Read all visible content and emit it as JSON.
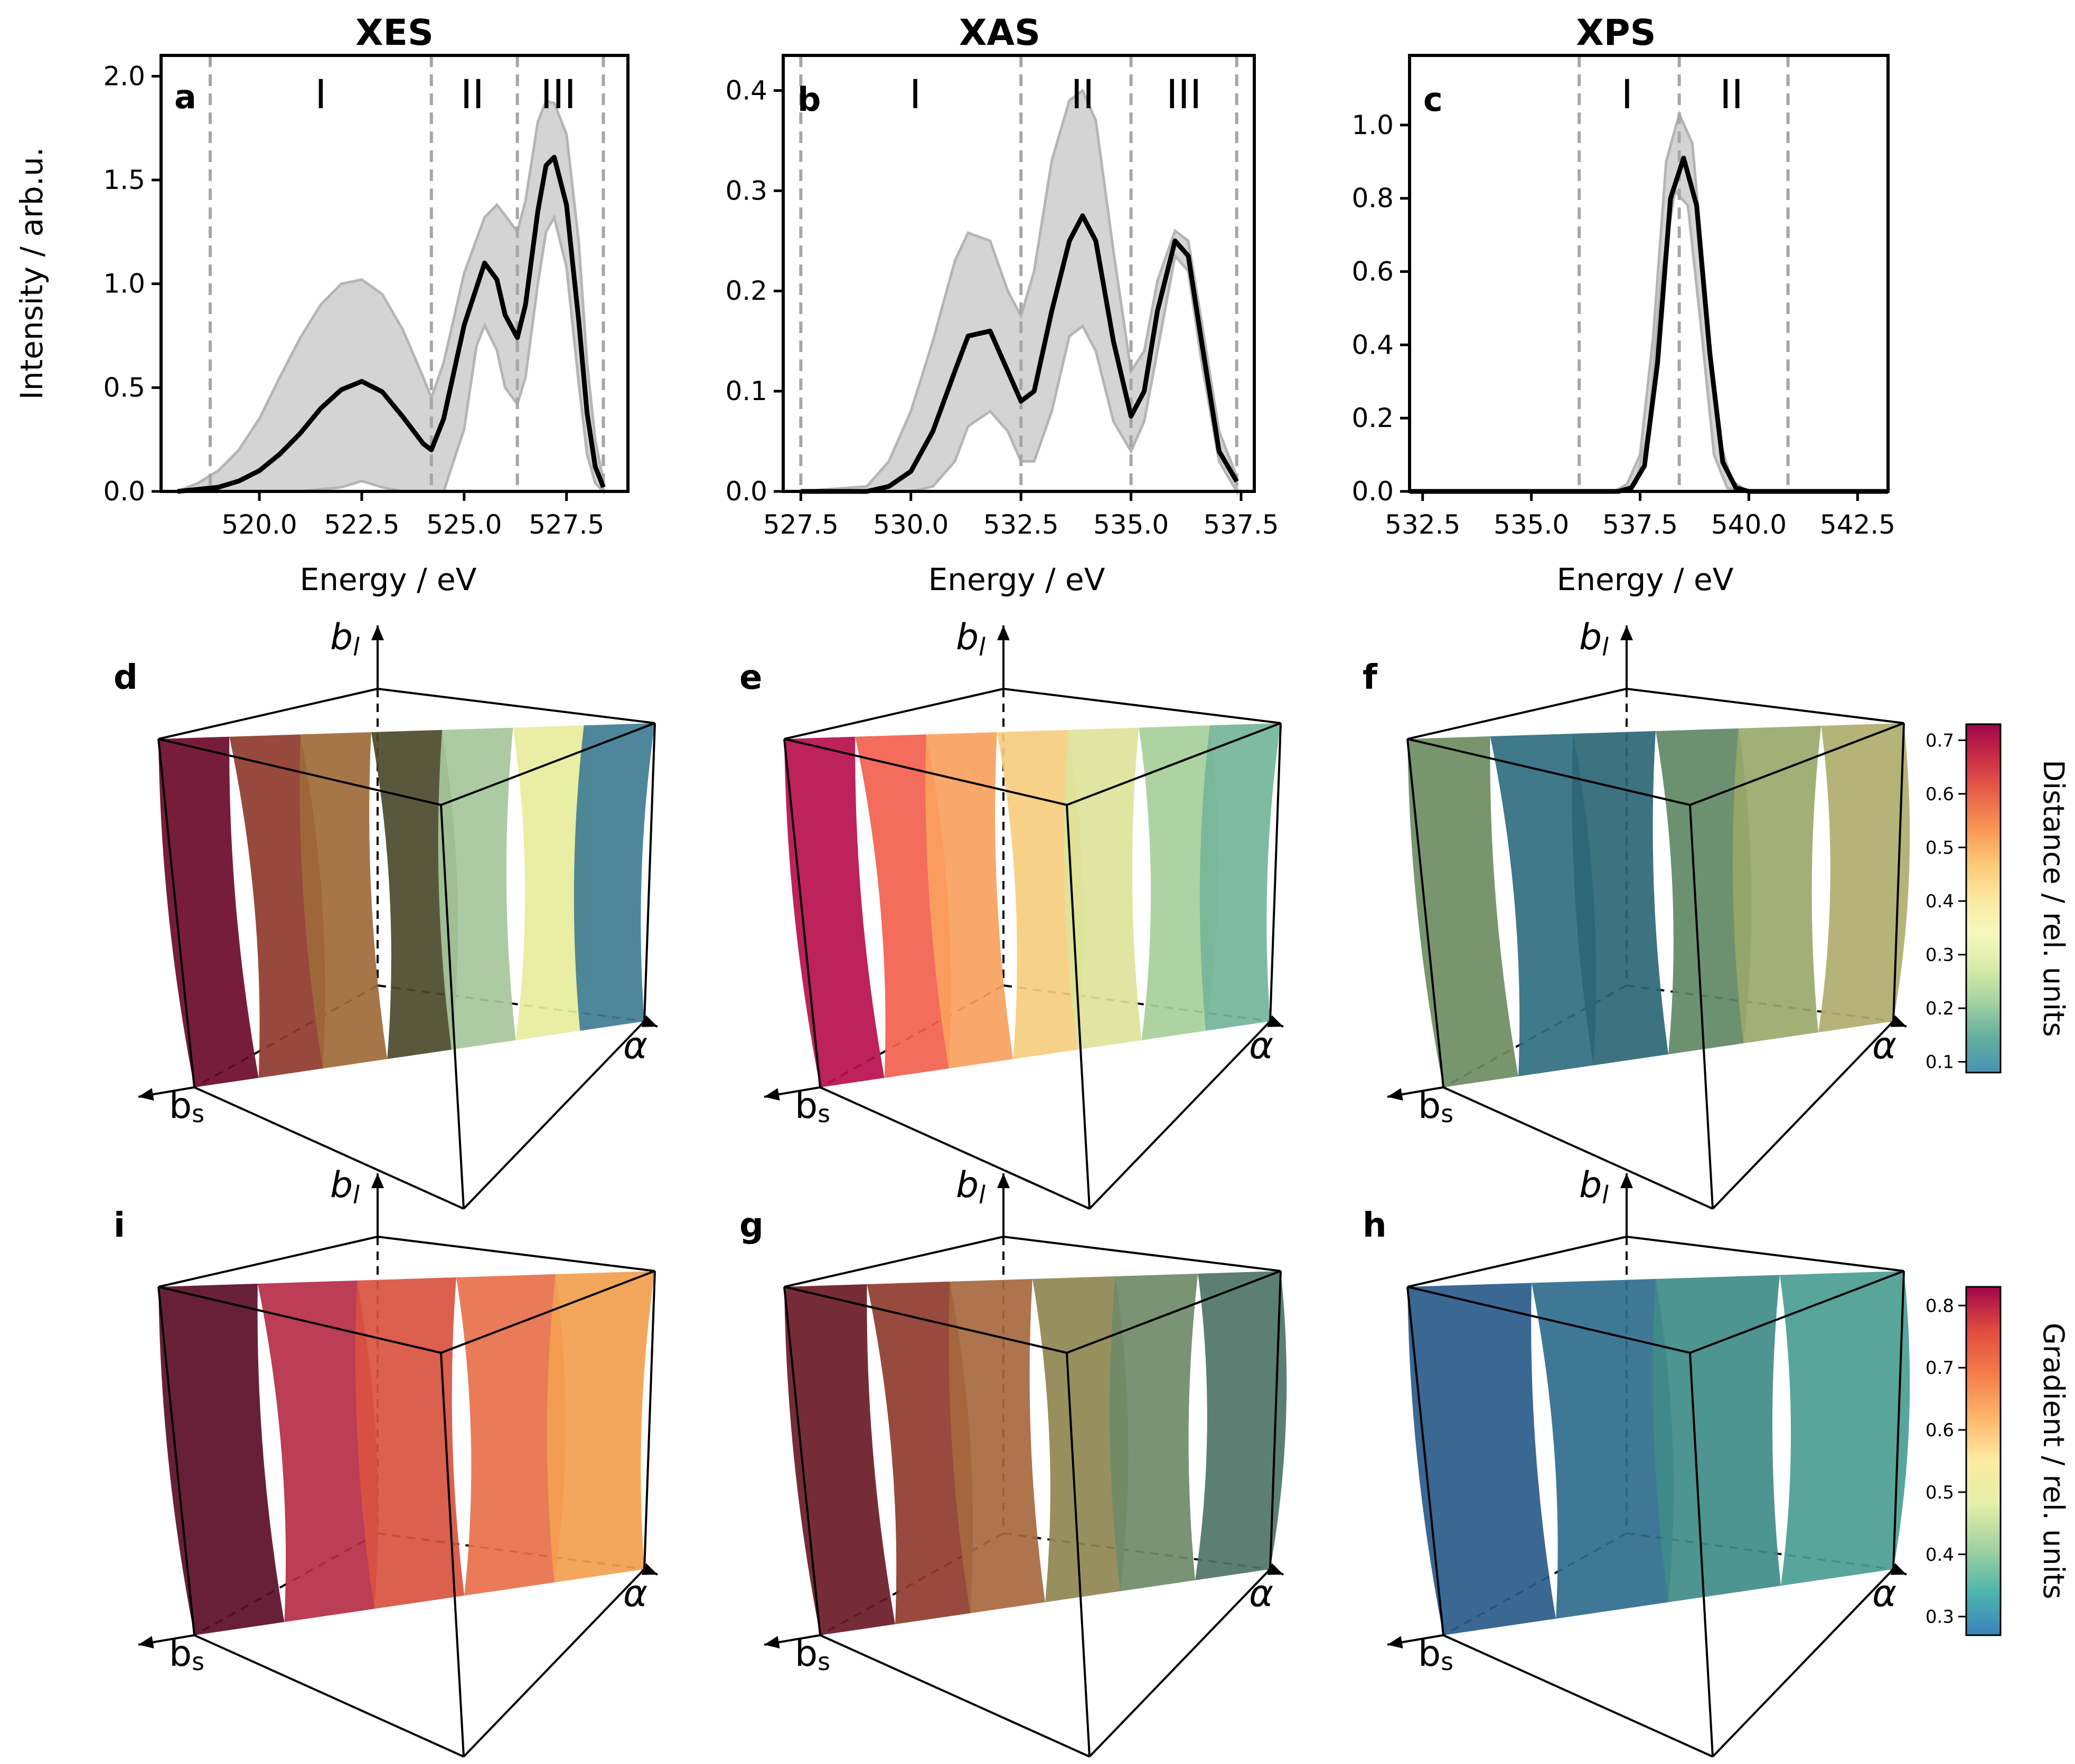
{
  "colors": {
    "line": "#000000",
    "band": "#d4d4d4",
    "band_edge": "#b5b5b5",
    "divider": "#a6a6a6"
  },
  "chart_data": [
    {
      "id": "a",
      "type": "line",
      "title": "XES",
      "panel_label": "a",
      "xlabel": "Energy / eV",
      "ylabel": "Intensity / arb.u.",
      "xlim": [
        517.6,
        529.0
      ],
      "ylim": [
        0.0,
        2.1
      ],
      "xticks": [
        520.0,
        522.5,
        525.0,
        527.5
      ],
      "xtick_labels": [
        "520.0",
        "522.5",
        "525.0",
        "527.5"
      ],
      "yticks": [
        0.0,
        0.5,
        1.0,
        1.5,
        2.0
      ],
      "ytick_labels": [
        "0.0",
        "0.5",
        "1.0",
        "1.5",
        "2.0"
      ],
      "region_boundaries": [
        518.8,
        524.2,
        526.3,
        528.4
      ],
      "regions": [
        {
          "label": "I",
          "x": 521.5
        },
        {
          "label": "II",
          "x": 525.2
        },
        {
          "label": "III",
          "x": 527.3
        }
      ],
      "series": [
        {
          "name": "mean",
          "x": [
            518.0,
            518.5,
            519.0,
            519.5,
            520.0,
            520.5,
            521.0,
            521.5,
            522.0,
            522.5,
            523.0,
            523.5,
            524.0,
            524.2,
            524.5,
            525.0,
            525.5,
            525.8,
            526.0,
            526.3,
            526.5,
            526.8,
            527.0,
            527.2,
            527.5,
            527.8,
            528.0,
            528.2,
            528.4
          ],
          "y": [
            0.0,
            0.01,
            0.02,
            0.05,
            0.1,
            0.18,
            0.28,
            0.4,
            0.49,
            0.53,
            0.48,
            0.36,
            0.23,
            0.2,
            0.35,
            0.8,
            1.1,
            1.02,
            0.85,
            0.74,
            0.9,
            1.35,
            1.57,
            1.61,
            1.38,
            0.82,
            0.38,
            0.12,
            0.02
          ]
        },
        {
          "name": "upper",
          "x": [
            518.0,
            518.5,
            519.0,
            519.5,
            520.0,
            520.5,
            521.0,
            521.5,
            522.0,
            522.5,
            523.0,
            523.5,
            524.0,
            524.2,
            524.5,
            525.0,
            525.5,
            525.8,
            526.0,
            526.3,
            526.5,
            526.8,
            527.0,
            527.2,
            527.5,
            527.8,
            528.0,
            528.2,
            528.4
          ],
          "y": [
            0.0,
            0.04,
            0.1,
            0.2,
            0.35,
            0.55,
            0.74,
            0.9,
            1.0,
            1.02,
            0.95,
            0.78,
            0.55,
            0.45,
            0.62,
            1.05,
            1.32,
            1.38,
            1.33,
            1.25,
            1.4,
            1.78,
            1.88,
            1.87,
            1.72,
            1.2,
            0.62,
            0.25,
            0.05
          ]
        },
        {
          "name": "lower",
          "x": [
            518.0,
            521.0,
            522.0,
            522.5,
            523.0,
            523.5,
            524.0,
            524.5,
            525.0,
            525.3,
            525.5,
            525.8,
            526.0,
            526.3,
            526.5,
            526.8,
            527.0,
            527.2,
            527.5,
            527.8,
            528.0,
            528.2,
            528.4
          ],
          "y": [
            0.0,
            0.0,
            0.02,
            0.05,
            0.02,
            0.0,
            0.0,
            0.0,
            0.3,
            0.7,
            0.8,
            0.68,
            0.5,
            0.42,
            0.55,
            1.0,
            1.25,
            1.32,
            1.08,
            0.52,
            0.18,
            0.04,
            0.0
          ]
        }
      ]
    },
    {
      "id": "b",
      "type": "line",
      "title": "XAS",
      "panel_label": "b",
      "xlabel": "Energy / eV",
      "ylabel": "",
      "xlim": [
        527.1,
        537.8
      ],
      "ylim": [
        0.0,
        0.435
      ],
      "xticks": [
        527.5,
        530.0,
        532.5,
        535.0,
        537.5
      ],
      "xtick_labels": [
        "527.5",
        "530.0",
        "532.5",
        "535.0",
        "537.5"
      ],
      "yticks": [
        0.0,
        0.1,
        0.2,
        0.3,
        0.4
      ],
      "ytick_labels": [
        "0.0",
        "0.1",
        "0.2",
        "0.3",
        "0.4"
      ],
      "region_boundaries": [
        527.5,
        532.5,
        535.0,
        537.4
      ],
      "regions": [
        {
          "label": "I",
          "x": 530.1
        },
        {
          "label": "II",
          "x": 533.9
        },
        {
          "label": "III",
          "x": 536.2
        }
      ],
      "series": [
        {
          "name": "mean",
          "x": [
            527.5,
            529.0,
            529.5,
            530.0,
            530.5,
            531.0,
            531.3,
            531.8,
            532.2,
            532.5,
            532.8,
            533.2,
            533.6,
            533.9,
            534.2,
            534.6,
            535.0,
            535.3,
            535.6,
            536.0,
            536.3,
            536.6,
            537.0,
            537.4
          ],
          "y": [
            0.0,
            0.0,
            0.005,
            0.02,
            0.06,
            0.12,
            0.155,
            0.16,
            0.12,
            0.09,
            0.1,
            0.18,
            0.25,
            0.275,
            0.25,
            0.15,
            0.075,
            0.1,
            0.18,
            0.25,
            0.235,
            0.15,
            0.04,
            0.01
          ]
        },
        {
          "name": "upper",
          "x": [
            527.5,
            529.0,
            529.5,
            530.0,
            530.5,
            531.0,
            531.3,
            531.8,
            532.2,
            532.5,
            532.8,
            533.2,
            533.6,
            533.9,
            534.2,
            534.6,
            535.0,
            535.3,
            535.6,
            536.0,
            536.3,
            536.6,
            537.0,
            537.4
          ],
          "y": [
            0.0,
            0.005,
            0.03,
            0.08,
            0.15,
            0.23,
            0.258,
            0.25,
            0.2,
            0.175,
            0.22,
            0.33,
            0.39,
            0.4,
            0.37,
            0.24,
            0.12,
            0.14,
            0.21,
            0.26,
            0.25,
            0.17,
            0.06,
            0.015
          ]
        },
        {
          "name": "lower",
          "x": [
            527.5,
            530.0,
            530.5,
            531.0,
            531.3,
            531.8,
            532.2,
            532.5,
            532.8,
            533.2,
            533.6,
            533.9,
            534.2,
            534.6,
            535.0,
            535.3,
            535.6,
            536.0,
            536.3,
            536.6,
            537.0,
            537.4
          ],
          "y": [
            0.0,
            0.0,
            0.005,
            0.03,
            0.065,
            0.08,
            0.06,
            0.03,
            0.03,
            0.08,
            0.155,
            0.165,
            0.14,
            0.07,
            0.04,
            0.07,
            0.14,
            0.235,
            0.22,
            0.13,
            0.03,
            0.0
          ]
        }
      ]
    },
    {
      "id": "c",
      "type": "line",
      "title": "XPS",
      "panel_label": "c",
      "xlabel": "Energy / eV",
      "ylabel": "",
      "xlim": [
        532.2,
        543.2
      ],
      "ylim": [
        0.0,
        1.19
      ],
      "xticks": [
        532.5,
        535.0,
        537.5,
        540.0,
        542.5
      ],
      "xtick_labels": [
        "532.5",
        "535.0",
        "537.5",
        "540.0",
        "542.5"
      ],
      "yticks": [
        0.0,
        0.2,
        0.4,
        0.6,
        0.8,
        1.0
      ],
      "ytick_labels": [
        "0.0",
        "0.2",
        "0.4",
        "0.6",
        "0.8",
        "1.0"
      ],
      "region_boundaries": [
        536.1,
        538.4,
        540.9
      ],
      "regions": [
        {
          "label": "I",
          "x": 537.2
        },
        {
          "label": "II",
          "x": 539.6
        }
      ],
      "series": [
        {
          "name": "mean",
          "x": [
            532.2,
            537.0,
            537.3,
            537.6,
            537.9,
            538.2,
            538.5,
            538.8,
            539.1,
            539.4,
            539.7,
            540.0,
            543.2
          ],
          "y": [
            0.0,
            0.0,
            0.01,
            0.07,
            0.35,
            0.8,
            0.91,
            0.78,
            0.38,
            0.08,
            0.01,
            0.0,
            0.0
          ]
        },
        {
          "name": "upper",
          "x": [
            532.2,
            536.9,
            537.2,
            537.5,
            537.8,
            538.1,
            538.4,
            538.7,
            539.0,
            539.3,
            539.6,
            539.9,
            540.1,
            543.2
          ],
          "y": [
            0.0,
            0.0,
            0.02,
            0.1,
            0.42,
            0.9,
            1.03,
            0.95,
            0.55,
            0.15,
            0.03,
            0.005,
            0.0,
            0.0
          ]
        },
        {
          "name": "lower",
          "x": [
            532.2,
            537.1,
            537.4,
            537.7,
            538.0,
            538.3,
            538.6,
            538.9,
            539.2,
            539.5,
            539.8,
            543.2
          ],
          "y": [
            0.0,
            0.0,
            0.02,
            0.18,
            0.6,
            0.82,
            0.78,
            0.45,
            0.1,
            0.01,
            0.0,
            0.0
          ]
        }
      ]
    },
    {
      "id": "colorbar-distance",
      "type": "heatmap",
      "label": "Distance / rel. units",
      "range": [
        0.08,
        0.73
      ],
      "ticks": [
        0.1,
        0.2,
        0.3,
        0.4,
        0.5,
        0.6,
        0.7
      ],
      "tick_labels": [
        "0.1",
        "0.2",
        "0.3",
        "0.4",
        "0.5",
        "0.6",
        "0.7"
      ],
      "colors": [
        "#4a92b5",
        "#63ae9f",
        "#a3d1a0",
        "#d8ebaa",
        "#f6f8c0",
        "#fbe9a0",
        "#fcc876",
        "#f89656",
        "#eb6348",
        "#cb2f47",
        "#a0064a"
      ]
    },
    {
      "id": "colorbar-gradient",
      "type": "heatmap",
      "label": "Gradient / rel. units",
      "range": [
        0.27,
        0.83
      ],
      "ticks": [
        0.3,
        0.4,
        0.5,
        0.6,
        0.7,
        0.8
      ],
      "tick_labels": [
        "0.3",
        "0.4",
        "0.5",
        "0.6",
        "0.7",
        "0.8"
      ],
      "colors": [
        "#3a82bd",
        "#4fb5ab",
        "#a3d1a0",
        "#e3efaa",
        "#fdeca3",
        "#fcb56c",
        "#f57c4a",
        "#e04c3f",
        "#a0064a"
      ]
    }
  ],
  "surfaces": [
    {
      "id": "d",
      "panel_label": "d",
      "axis_labels": {
        "vertical": "b_l",
        "right": "α",
        "left": "b_s"
      },
      "colors": [
        "#6b0a2a",
        "#8f3a2c",
        "#9e6a3a",
        "#4b4a2c",
        "#a6c79a",
        "#e8ec9c",
        "#3f7d94"
      ]
    },
    {
      "id": "e",
      "panel_label": "e",
      "axis_labels": {
        "vertical": "b_l",
        "right": "α",
        "left": "b_s"
      },
      "colors": [
        "#b80f4c",
        "#f35f4e",
        "#f9a15e",
        "#f7cd7e",
        "#dde39a",
        "#a7cf9a",
        "#74b59a"
      ]
    },
    {
      "id": "f",
      "panel_label": "f",
      "axis_labels": {
        "vertical": "b_l",
        "right": "α",
        "left": "b_s"
      },
      "colors": [
        "#6e8c62",
        "#2f6e80",
        "#2c6676",
        "#5f8864",
        "#9aa86a",
        "#b0ad6e"
      ]
    },
    {
      "id": "i",
      "panel_label": "i",
      "axis_labels": {
        "vertical": "b_l",
        "right": "α",
        "left": "b_s"
      },
      "colors": [
        "#5b0d28",
        "#b52c48",
        "#d8533f",
        "#e8704a",
        "#f2a04e"
      ]
    },
    {
      "id": "g",
      "panel_label": "g",
      "axis_labels": {
        "vertical": "b_l",
        "right": "α",
        "left": "b_s"
      },
      "colors": [
        "#6a1a26",
        "#8e3b2c",
        "#a6683e",
        "#8f8550",
        "#6f8a68",
        "#4e7468"
      ]
    },
    {
      "id": "h",
      "panel_label": "h",
      "axis_labels": {
        "vertical": "b_l",
        "right": "α",
        "left": "b_s"
      },
      "colors": [
        "#2a5a8a",
        "#2f6c8e",
        "#3f8b88",
        "#4a9e92"
      ]
    }
  ]
}
